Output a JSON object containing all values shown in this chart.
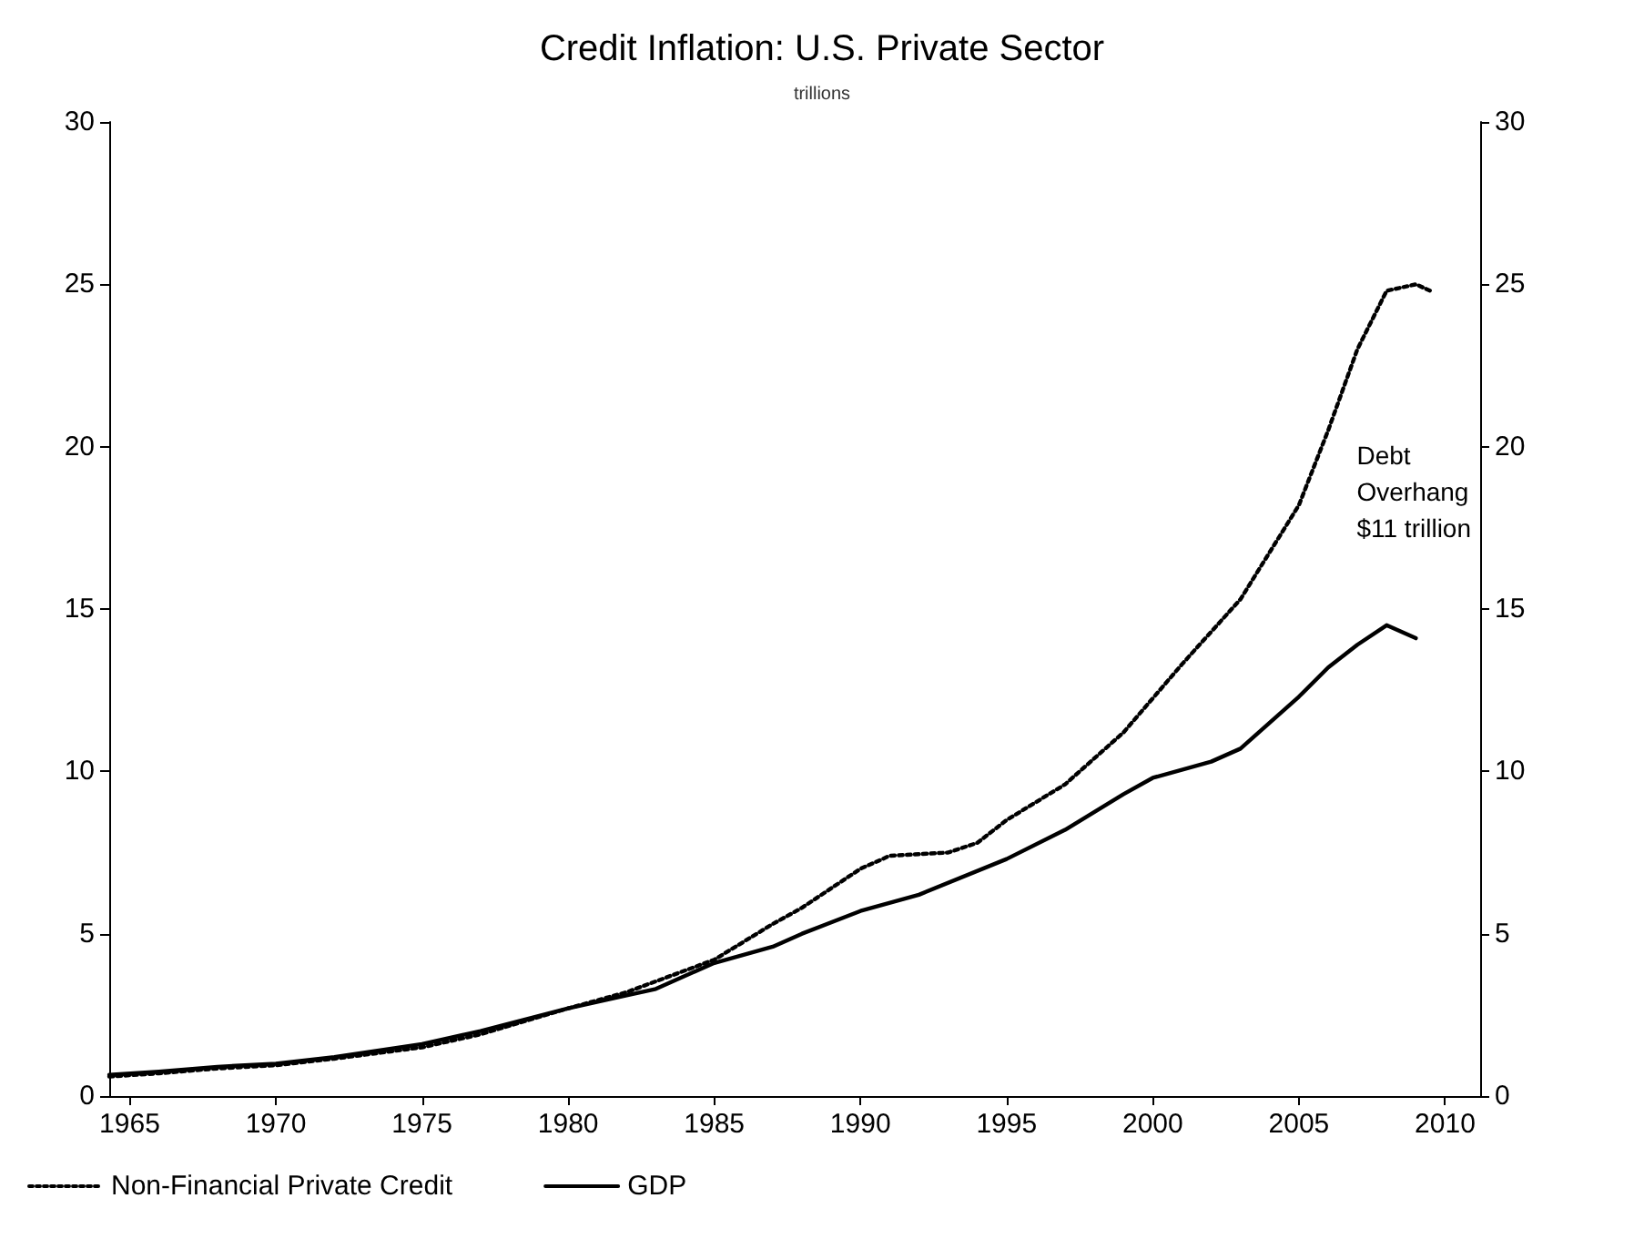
{
  "chart_data": {
    "type": "line",
    "title": "Credit Inflation: U.S. Private Sector",
    "subtitle": "trillions",
    "xlim": [
      1964.3,
      2011.2
    ],
    "xticks": [
      1965,
      1970,
      1975,
      1980,
      1985,
      1990,
      1995,
      2000,
      2005,
      2010
    ],
    "ylim": [
      0,
      30
    ],
    "yticks": [
      0,
      5,
      10,
      15,
      20,
      25,
      30
    ],
    "y2lim": [
      0,
      30
    ],
    "y2ticks": [
      0,
      5,
      10,
      15,
      20,
      25,
      30
    ],
    "grid": false,
    "legend": "bottom left",
    "marker": "none",
    "annotations": [
      "Debt\nOverhang\n$11 trillion"
    ],
    "series": [
      {
        "name": "Non-Financial Private Credit",
        "color": "#000000",
        "line_style": "dotted",
        "x": [
          1964.3,
          1966,
          1968,
          1970,
          1972,
          1975,
          1977,
          1980,
          1982,
          1985,
          1987,
          1988,
          1990,
          1991,
          1993,
          1994,
          1995,
          1997,
          1999,
          2001,
          2003,
          2005,
          2006,
          2007,
          2008,
          2009,
          2009.5
        ],
        "values": [
          0.6,
          0.7,
          0.85,
          0.95,
          1.15,
          1.5,
          1.9,
          2.7,
          3.2,
          4.2,
          5.3,
          5.8,
          7.0,
          7.4,
          7.5,
          7.8,
          8.5,
          9.6,
          11.2,
          13.3,
          15.3,
          18.2,
          20.5,
          23.0,
          24.8,
          25.0,
          24.8
        ]
      },
      {
        "name": "GDP",
        "color": "#000000",
        "line_style": "solid",
        "x": [
          1964.3,
          1966,
          1968,
          1970,
          1972,
          1975,
          1977,
          1980,
          1982,
          1983,
          1985,
          1987,
          1988,
          1990,
          1992,
          1995,
          1997,
          1999,
          2000,
          2002,
          2003,
          2005,
          2006,
          2007,
          2008,
          2009
        ],
        "values": [
          0.65,
          0.75,
          0.9,
          1.0,
          1.2,
          1.6,
          2.0,
          2.7,
          3.1,
          3.3,
          4.1,
          4.6,
          5.0,
          5.7,
          6.2,
          7.3,
          8.2,
          9.3,
          9.8,
          10.3,
          10.7,
          12.3,
          13.2,
          13.9,
          14.5,
          14.1
        ]
      }
    ]
  }
}
